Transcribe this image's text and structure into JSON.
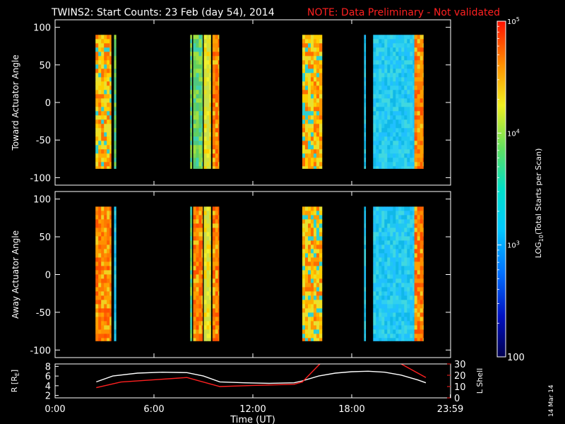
{
  "header": {
    "title": "TWINS2: Start Counts: 23 Feb (day  54), 2014",
    "note": "NOTE: Data Preliminary - Not validated"
  },
  "side_date": "14 Mar 14",
  "colors": {
    "background": "#000000",
    "note_red": "#ff2020",
    "frame": "#ffffff"
  },
  "chart_data": [
    {
      "type": "heatmap",
      "name": "top-panel",
      "ylabel": "Toward Actuator Angle",
      "ylim": [
        -110,
        110
      ],
      "yticks": [
        "100",
        "50",
        "0",
        "-50",
        "-100"
      ],
      "ytick_values": [
        100,
        50,
        0,
        -50,
        -100
      ],
      "xlim": [
        0,
        24
      ],
      "angle_range": [
        -88,
        90
      ],
      "segments": [
        {
          "start": 2.45,
          "end": 3.4,
          "style": "orange-yellow"
        },
        {
          "start": 3.58,
          "end": 3.7,
          "style": "green"
        },
        {
          "start": 8.2,
          "end": 8.3,
          "style": "green"
        },
        {
          "start": 8.38,
          "end": 8.95,
          "style": "green"
        },
        {
          "start": 9.02,
          "end": 9.45,
          "style": "yellow"
        },
        {
          "start": 9.55,
          "end": 9.95,
          "style": "orange"
        },
        {
          "start": 15.0,
          "end": 16.2,
          "style": "orange-yellow"
        },
        {
          "start": 18.75,
          "end": 18.85,
          "style": "cyan"
        },
        {
          "start": 19.3,
          "end": 21.8,
          "style": "cyan"
        },
        {
          "start": 21.8,
          "end": 22.35,
          "style": "orange"
        }
      ]
    },
    {
      "type": "heatmap",
      "name": "bottom-panel",
      "ylabel": "Away Actuator Angle",
      "ylim": [
        -110,
        110
      ],
      "yticks": [
        "100",
        "50",
        "0",
        "-50",
        "-100"
      ],
      "ytick_values": [
        100,
        50,
        0,
        -50,
        -100
      ],
      "xlim": [
        0,
        24
      ],
      "angle_range": [
        -88,
        90
      ],
      "segments": [
        {
          "start": 2.45,
          "end": 3.4,
          "style": "orange"
        },
        {
          "start": 3.58,
          "end": 3.7,
          "style": "cyan"
        },
        {
          "start": 8.2,
          "end": 8.3,
          "style": "green"
        },
        {
          "start": 8.38,
          "end": 8.95,
          "style": "orange"
        },
        {
          "start": 9.02,
          "end": 9.45,
          "style": "yellow"
        },
        {
          "start": 9.55,
          "end": 9.95,
          "style": "orange"
        },
        {
          "start": 15.0,
          "end": 16.2,
          "style": "orange-yellow"
        },
        {
          "start": 18.75,
          "end": 18.85,
          "style": "cyan"
        },
        {
          "start": 19.3,
          "end": 21.8,
          "style": "cyan"
        },
        {
          "start": 21.8,
          "end": 22.35,
          "style": "orange"
        }
      ]
    },
    {
      "type": "line",
      "name": "orbit-panel",
      "xlabel": "Time (UT)",
      "xlim": [
        0,
        24
      ],
      "xticks": [
        "0:00",
        "6:00",
        "12:00",
        "18:00",
        "23:59"
      ],
      "xtick_values": [
        0,
        6,
        12,
        18,
        23.98
      ],
      "left_axis": {
        "label": "R [R",
        "label_sub": "E",
        "label_end": "]",
        "ylim": [
          1.5,
          8.5
        ],
        "yticks": [
          "8",
          "6",
          "4",
          "2"
        ],
        "ytick_values": [
          8,
          6,
          4,
          2
        ]
      },
      "right_axis": {
        "label": "L Shell",
        "ylim": [
          0,
          30
        ],
        "yticks": [
          "30",
          "20",
          "10",
          "0"
        ],
        "ytick_values": [
          30,
          20,
          10,
          0
        ]
      },
      "series": [
        {
          "axis": "left",
          "color": "#ffffff",
          "x": [
            2.5,
            3.5,
            5,
            6.5,
            8,
            9,
            10,
            11.5,
            13,
            14.5,
            15,
            16,
            17,
            18,
            19,
            20,
            21,
            22,
            22.5
          ],
          "y": [
            4.8,
            6.0,
            6.6,
            6.8,
            6.7,
            6.0,
            4.8,
            4.6,
            4.5,
            4.6,
            5.0,
            6.0,
            6.6,
            6.9,
            7.0,
            6.8,
            6.2,
            5.2,
            4.6
          ]
        },
        {
          "axis": "right",
          "color": "#ff2020",
          "x": [
            2.5,
            4.0,
            6,
            8,
            8.5,
            10,
            12,
            14.5,
            15,
            16.0,
            16.3,
            20.5,
            21,
            22.5
          ],
          "y": [
            9,
            14,
            16,
            18,
            16,
            10,
            11,
            12,
            14,
            29,
            33,
            33,
            30,
            18
          ]
        }
      ]
    }
  ],
  "colorbar": {
    "label_pre": "LOG",
    "label_sub": "10",
    "label_post": "(Total Starts per Scan)",
    "range": [
      2,
      5
    ],
    "ticks": [
      {
        "value": 5,
        "base": "10",
        "exp": "5"
      },
      {
        "value": 4,
        "base": "10",
        "exp": "4"
      },
      {
        "value": 3,
        "base": "10",
        "exp": "3"
      },
      {
        "value": 2,
        "text": "100"
      }
    ]
  }
}
